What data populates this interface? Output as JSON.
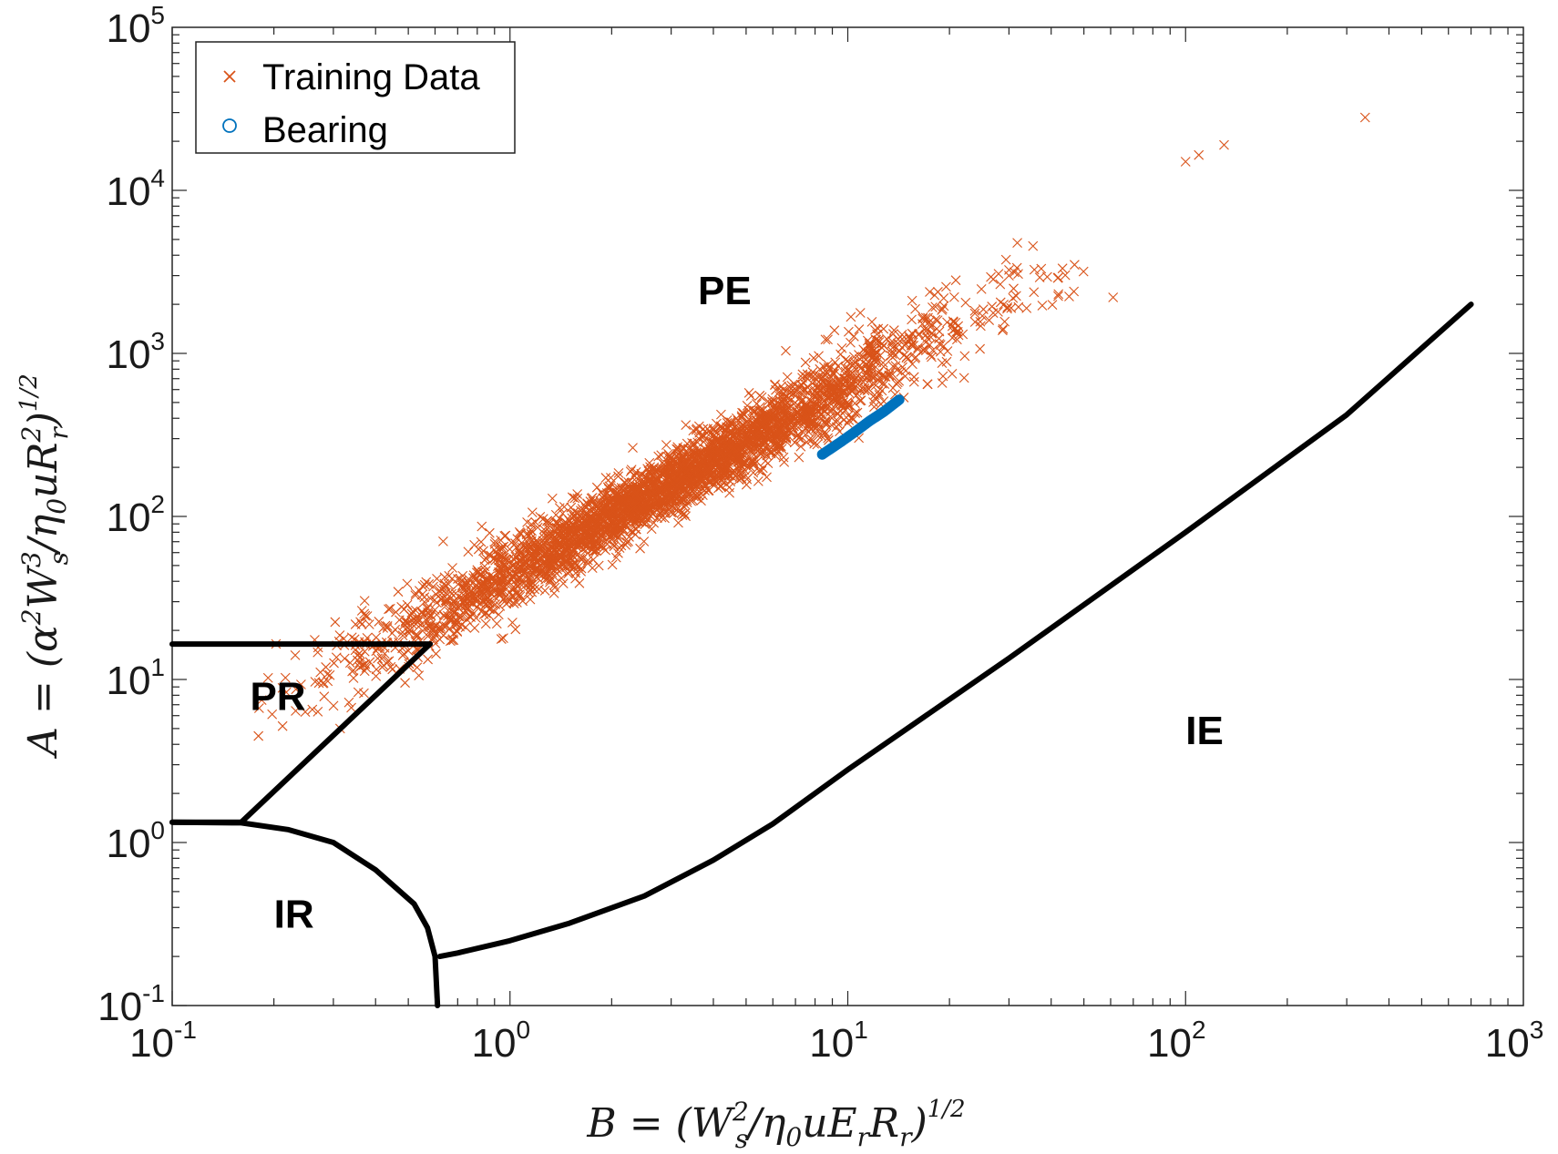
{
  "chart_data": {
    "type": "scatter",
    "x_scale": "log",
    "y_scale": "log",
    "xlim": [
      0.1,
      1000
    ],
    "ylim": [
      0.1,
      100000
    ],
    "x_ticks": [
      {
        "base": "10",
        "exp": "-1",
        "value": 0.1
      },
      {
        "base": "10",
        "exp": "0",
        "value": 1
      },
      {
        "base": "10",
        "exp": "1",
        "value": 10
      },
      {
        "base": "10",
        "exp": "2",
        "value": 100
      },
      {
        "base": "10",
        "exp": "3",
        "value": 1000
      }
    ],
    "y_ticks": [
      {
        "base": "10",
        "exp": "-1",
        "value": 0.1
      },
      {
        "base": "10",
        "exp": "0",
        "value": 1
      },
      {
        "base": "10",
        "exp": "1",
        "value": 10
      },
      {
        "base": "10",
        "exp": "2",
        "value": 100
      },
      {
        "base": "10",
        "exp": "3",
        "value": 1000
      },
      {
        "base": "10",
        "exp": "4",
        "value": 10000
      },
      {
        "base": "10",
        "exp": "5",
        "value": 100000
      }
    ],
    "xlabel": "B = (W_s^2 / η_0 u E_r R_r)^(1/2)",
    "ylabel": "A = (α^2 W_s^3 / η_0 u R_r^2)^(1/2)",
    "legend_position": "top-left",
    "series": [
      {
        "name": "Training Data",
        "marker": "x",
        "color": "#D95319",
        "trend": {
          "x_start": 0.17,
          "x_end": 340,
          "slope": 1.15,
          "a_at_b1": 45
        },
        "sample_points": [
          [
            0.18,
            4.5
          ],
          [
            0.5,
            15
          ],
          [
            1,
            45
          ],
          [
            3,
            200
          ],
          [
            10,
            900
          ],
          [
            30,
            3000
          ],
          [
            100,
            15000
          ],
          [
            130,
            19000
          ],
          [
            340,
            28000
          ]
        ]
      },
      {
        "name": "Bearing",
        "marker": "o",
        "color": "#0072BD",
        "points": [
          [
            8.4,
            240
          ],
          [
            9.5,
            285
          ],
          [
            10.5,
            330
          ],
          [
            11.6,
            385
          ],
          [
            12.8,
            440
          ],
          [
            14.2,
            520
          ]
        ]
      }
    ],
    "boundaries": [
      {
        "name": "PR-PE upper",
        "points": [
          [
            0.1,
            16.5
          ],
          [
            0.58,
            16.5
          ]
        ]
      },
      {
        "name": "PR-PE diagonal",
        "points": [
          [
            0.16,
            1.33
          ],
          [
            0.58,
            16.5
          ]
        ]
      },
      {
        "name": "IR-PR",
        "points": [
          [
            0.1,
            1.33
          ],
          [
            0.16,
            1.33
          ]
        ]
      },
      {
        "name": "IR boundary",
        "points": [
          [
            0.1,
            1.33
          ],
          [
            0.16,
            1.32
          ],
          [
            0.22,
            1.2
          ],
          [
            0.3,
            1.0
          ],
          [
            0.4,
            0.68
          ],
          [
            0.52,
            0.42
          ],
          [
            0.57,
            0.3
          ],
          [
            0.6,
            0.2
          ],
          [
            0.61,
            0.1
          ]
        ]
      },
      {
        "name": "IE boundary",
        "points": [
          [
            0.62,
            0.2
          ],
          [
            0.7,
            0.21
          ],
          [
            1.0,
            0.25
          ],
          [
            1.5,
            0.32
          ],
          [
            2.5,
            0.47
          ],
          [
            4,
            0.78
          ],
          [
            6,
            1.3
          ],
          [
            10,
            2.8
          ],
          [
            30,
            13.5
          ],
          [
            100,
            80
          ],
          [
            300,
            420
          ],
          [
            700,
            2000
          ]
        ]
      }
    ],
    "region_labels": [
      {
        "text": "PE",
        "x": 3.6,
        "y": 2000
      },
      {
        "text": "PR",
        "x": 0.17,
        "y": 6.5
      },
      {
        "text": "IR",
        "x": 0.2,
        "y": 0.3
      },
      {
        "text": "IE",
        "x": 100,
        "y": 4
      }
    ]
  }
}
